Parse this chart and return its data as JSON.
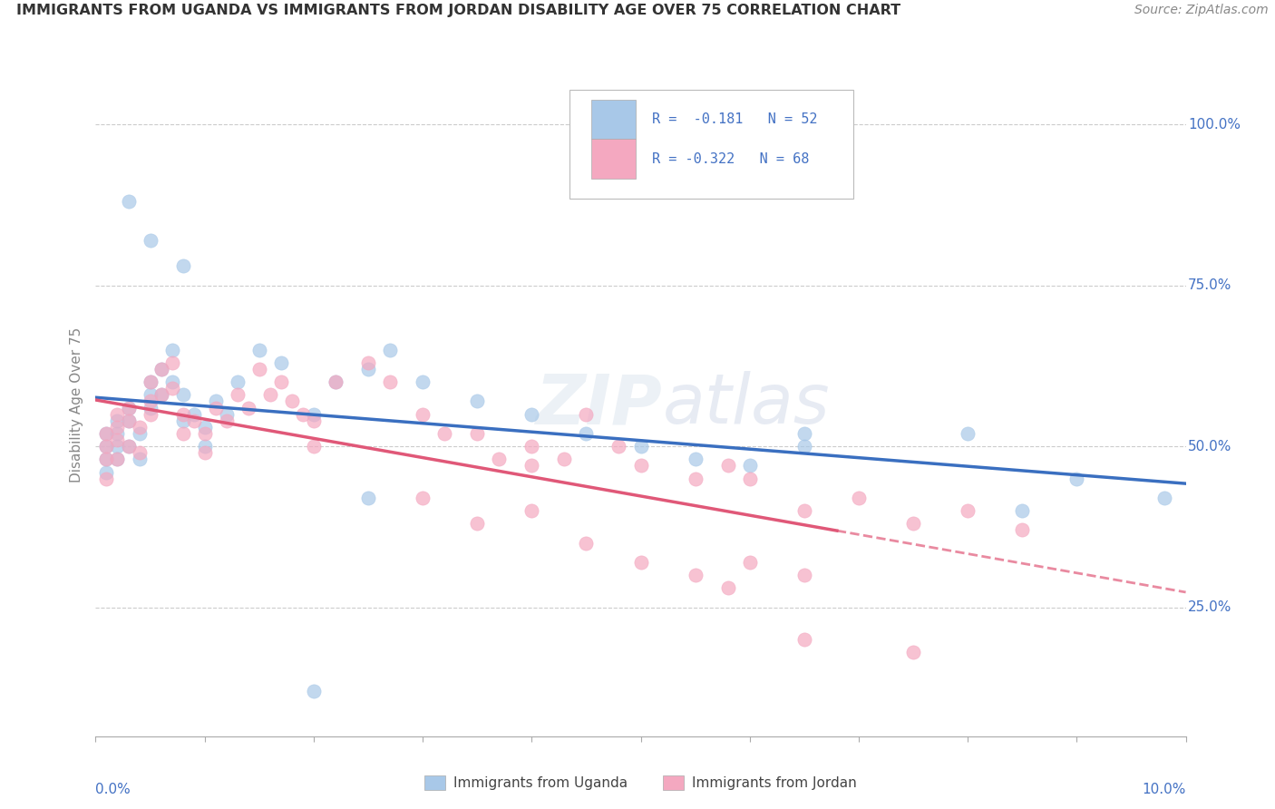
{
  "title": "IMMIGRANTS FROM UGANDA VS IMMIGRANTS FROM JORDAN DISABILITY AGE OVER 75 CORRELATION CHART",
  "source": "Source: ZipAtlas.com",
  "ylabel": "Disability Age Over 75",
  "legend_label1": "Immigrants from Uganda",
  "legend_label2": "Immigrants from Jordan",
  "color_uganda": "#a8c8e8",
  "color_jordan": "#f4a8c0",
  "color_uganda_line": "#3a6fc0",
  "color_jordan_line": "#e05878",
  "color_text_blue": "#4472c4",
  "color_grid": "#cccccc",
  "ytick_labels": [
    "25.0%",
    "50.0%",
    "75.0%",
    "100.0%"
  ],
  "ytick_values": [
    0.25,
    0.5,
    0.75,
    1.0
  ],
  "xlim": [
    0.0,
    0.1
  ],
  "ylim": [
    0.05,
    1.08
  ],
  "uganda_x": [
    0.001,
    0.001,
    0.001,
    0.001,
    0.002,
    0.002,
    0.002,
    0.002,
    0.003,
    0.003,
    0.003,
    0.004,
    0.004,
    0.005,
    0.005,
    0.005,
    0.006,
    0.006,
    0.007,
    0.007,
    0.008,
    0.008,
    0.009,
    0.01,
    0.01,
    0.011,
    0.012,
    0.013,
    0.015,
    0.017,
    0.02,
    0.022,
    0.025,
    0.027,
    0.03,
    0.035,
    0.04,
    0.045,
    0.05,
    0.055,
    0.06,
    0.065,
    0.08,
    0.09,
    0.098,
    0.003,
    0.005,
    0.008,
    0.02,
    0.025,
    0.065,
    0.085
  ],
  "uganda_y": [
    0.52,
    0.5,
    0.48,
    0.46,
    0.54,
    0.52,
    0.5,
    0.48,
    0.56,
    0.54,
    0.5,
    0.52,
    0.48,
    0.6,
    0.58,
    0.56,
    0.62,
    0.58,
    0.65,
    0.6,
    0.58,
    0.54,
    0.55,
    0.53,
    0.5,
    0.57,
    0.55,
    0.6,
    0.65,
    0.63,
    0.55,
    0.6,
    0.62,
    0.65,
    0.6,
    0.57,
    0.55,
    0.52,
    0.5,
    0.48,
    0.47,
    0.5,
    0.52,
    0.45,
    0.42,
    0.88,
    0.82,
    0.78,
    0.12,
    0.42,
    0.52,
    0.4
  ],
  "jordan_x": [
    0.001,
    0.001,
    0.001,
    0.001,
    0.002,
    0.002,
    0.002,
    0.002,
    0.003,
    0.003,
    0.003,
    0.004,
    0.004,
    0.005,
    0.005,
    0.005,
    0.006,
    0.006,
    0.007,
    0.007,
    0.008,
    0.008,
    0.009,
    0.01,
    0.01,
    0.011,
    0.012,
    0.013,
    0.014,
    0.015,
    0.016,
    0.017,
    0.018,
    0.019,
    0.02,
    0.02,
    0.022,
    0.025,
    0.027,
    0.03,
    0.032,
    0.035,
    0.037,
    0.04,
    0.04,
    0.043,
    0.045,
    0.048,
    0.05,
    0.055,
    0.058,
    0.06,
    0.065,
    0.07,
    0.075,
    0.08,
    0.085,
    0.058,
    0.06,
    0.065,
    0.03,
    0.035,
    0.04,
    0.045,
    0.05,
    0.055,
    0.065,
    0.075
  ],
  "jordan_y": [
    0.52,
    0.5,
    0.48,
    0.45,
    0.55,
    0.53,
    0.51,
    0.48,
    0.56,
    0.54,
    0.5,
    0.53,
    0.49,
    0.6,
    0.57,
    0.55,
    0.62,
    0.58,
    0.63,
    0.59,
    0.55,
    0.52,
    0.54,
    0.52,
    0.49,
    0.56,
    0.54,
    0.58,
    0.56,
    0.62,
    0.58,
    0.6,
    0.57,
    0.55,
    0.54,
    0.5,
    0.6,
    0.63,
    0.6,
    0.55,
    0.52,
    0.52,
    0.48,
    0.5,
    0.47,
    0.48,
    0.55,
    0.5,
    0.47,
    0.45,
    0.47,
    0.45,
    0.4,
    0.42,
    0.38,
    0.4,
    0.37,
    0.28,
    0.32,
    0.3,
    0.42,
    0.38,
    0.4,
    0.35,
    0.32,
    0.3,
    0.2,
    0.18
  ]
}
